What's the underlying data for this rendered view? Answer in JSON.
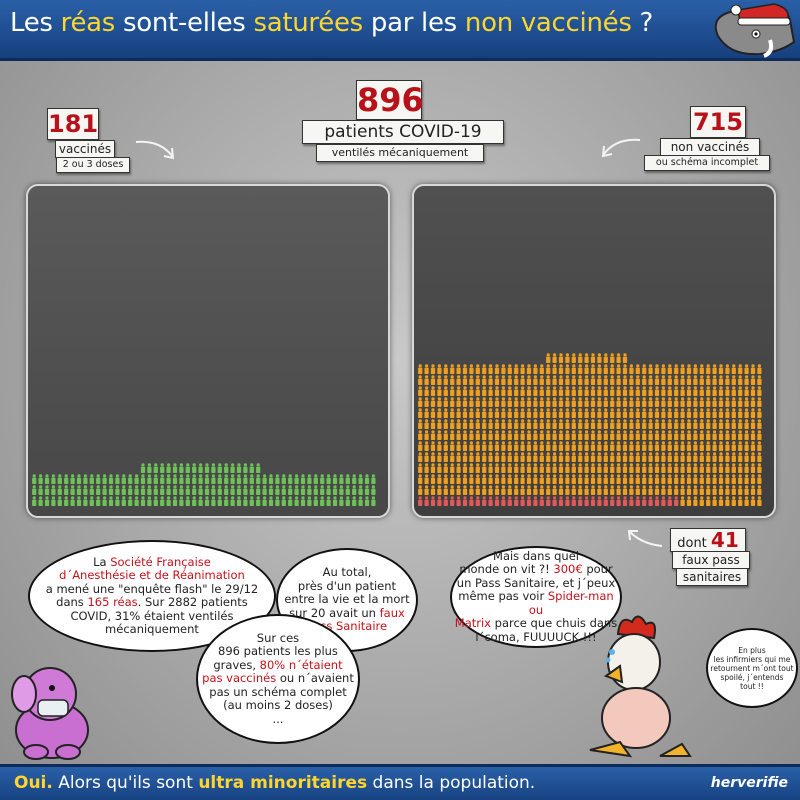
{
  "header": {
    "title_part1": "Les ",
    "title_hl1": "réas",
    "title_part2": " sont-elles ",
    "title_hl2": "saturées",
    "title_part3": " par les ",
    "title_hl3": "non vaccinés",
    "title_part4": " ?"
  },
  "counts": {
    "total": {
      "number": "896",
      "label": "patients COVID-19",
      "sublabel": "ventilés mécaniquement"
    },
    "vaccinated": {
      "number": "181",
      "label": "vaccinés",
      "sublabel": "2 ou 3 doses"
    },
    "unvaccinated": {
      "number": "715",
      "label": "non vaccinés",
      "sublabel": "ou schéma incomplet"
    },
    "fake_pass": {
      "prefix": "dont",
      "number": "41",
      "label_line1": "faux pass",
      "label_line2": "sanitaires"
    }
  },
  "figures": {
    "vaccinated_count": 181,
    "unvaccinated_count": 715,
    "fake_pass_count": 41,
    "vaccinated_color": "#6fc25a",
    "unvaccinated_color": "#f0a020",
    "fake_pass_color": "#e05a5a"
  },
  "bubbles": {
    "b1": {
      "t1": "La ",
      "r1": "Société Française\nd´Anesthésie et de Réanimation",
      "t2": "\na mené une \"enquête flash\" le 29/12\ndans ",
      "r2": "165 réas",
      "t3": ". Sur 2882 patients\nCOVID, 31% étaient ventilés\nmécaniquement"
    },
    "b2": {
      "t1": "Au total,\nprès d'un patient\nentre la vie et la mort\nsur 20 avait un ",
      "r1": "faux\nPass Sanitaire"
    },
    "b3": {
      "t1": "Sur ces\n896 patients les plus\ngraves, ",
      "r1": "80% n´étaient\npas vaccinés",
      "t2": " ou n´avaient\npas un schéma complet\n(au moins 2 doses)\n..."
    },
    "b4": {
      "t1": "Mais dans quel\nmonde on vit ?! ",
      "r1": "300€",
      "t2": " pour\nun Pass Sanitaire, et j´peux\nmême pas voir ",
      "r2": "Spider-man ou\nMatrix",
      "t3": " parce que chuis dans\nl´coma, FUUUUCK !!!"
    },
    "aside": "En plus\nles infirmiers qui me\nretournent m´ont tout\nspoilé, j´entends\ntout !!"
  },
  "footer": {
    "oui": "Oui.",
    "t1": " Alors qu'ils sont ",
    "hl": "ultra minoritaires",
    "t2": " dans la population."
  },
  "brand": "herverifie"
}
